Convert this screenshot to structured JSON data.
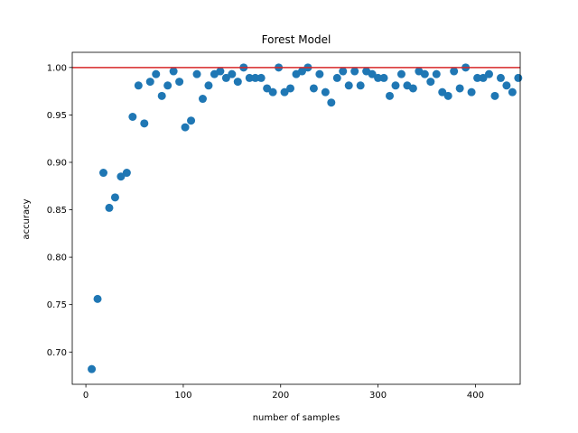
{
  "chart_data": {
    "type": "scatter",
    "title": "Forest Model",
    "xlabel": "number of samples",
    "ylabel": "accuracy",
    "xlim": [
      -14,
      446
    ],
    "ylim": [
      0.666,
      1.016
    ],
    "xticks": [
      0,
      100,
      200,
      300,
      400
    ],
    "xtick_labels": [
      "0",
      "100",
      "200",
      "300",
      "400"
    ],
    "yticks": [
      0.7,
      0.75,
      0.8,
      0.85,
      0.9,
      0.95,
      1.0
    ],
    "ytick_labels": [
      "0.70",
      "0.75",
      "0.80",
      "0.85",
      "0.90",
      "0.95",
      "1.00"
    ],
    "grid": false,
    "marker_color": "#1f77b4",
    "reference_line": {
      "y": 1.0,
      "color": "#d62728"
    },
    "series": [
      {
        "x": [
          6,
          12,
          18,
          24,
          30,
          36,
          42,
          48,
          54,
          60,
          66,
          72,
          78,
          84,
          90,
          96,
          102,
          108,
          114,
          120,
          126,
          132,
          138,
          144,
          150,
          156,
          162,
          168,
          174,
          180,
          186,
          192,
          198,
          204,
          210,
          216,
          222,
          228,
          234,
          240,
          246,
          252,
          258,
          264,
          270,
          276,
          282,
          288,
          294,
          300,
          306,
          312,
          318,
          324,
          330,
          336,
          342,
          348,
          354,
          360,
          366,
          372,
          378,
          384,
          390,
          396,
          402,
          408,
          414,
          420,
          426,
          432,
          438,
          444
        ],
        "y": [
          0.682,
          0.756,
          0.889,
          0.852,
          0.863,
          0.885,
          0.889,
          0.948,
          0.981,
          0.941,
          0.985,
          0.993,
          0.97,
          0.981,
          0.996,
          0.985,
          0.937,
          0.944,
          0.993,
          0.967,
          0.981,
          0.993,
          0.996,
          0.989,
          0.993,
          0.985,
          1.0,
          0.989,
          0.989,
          0.989,
          0.978,
          0.974,
          1.0,
          0.974,
          0.978,
          0.993,
          0.996,
          1.0,
          0.978,
          0.993,
          0.974,
          0.963,
          0.989,
          0.996,
          0.981,
          0.996,
          0.981,
          0.996,
          0.993,
          0.989,
          0.989,
          0.97,
          0.981,
          0.993,
          0.981,
          0.978,
          0.996,
          0.993,
          0.985,
          0.993,
          0.974,
          0.97,
          0.996,
          0.978,
          1.0,
          0.974,
          0.989,
          0.989,
          0.993,
          0.97,
          0.989,
          0.981,
          0.974,
          0.989
        ]
      }
    ]
  }
}
